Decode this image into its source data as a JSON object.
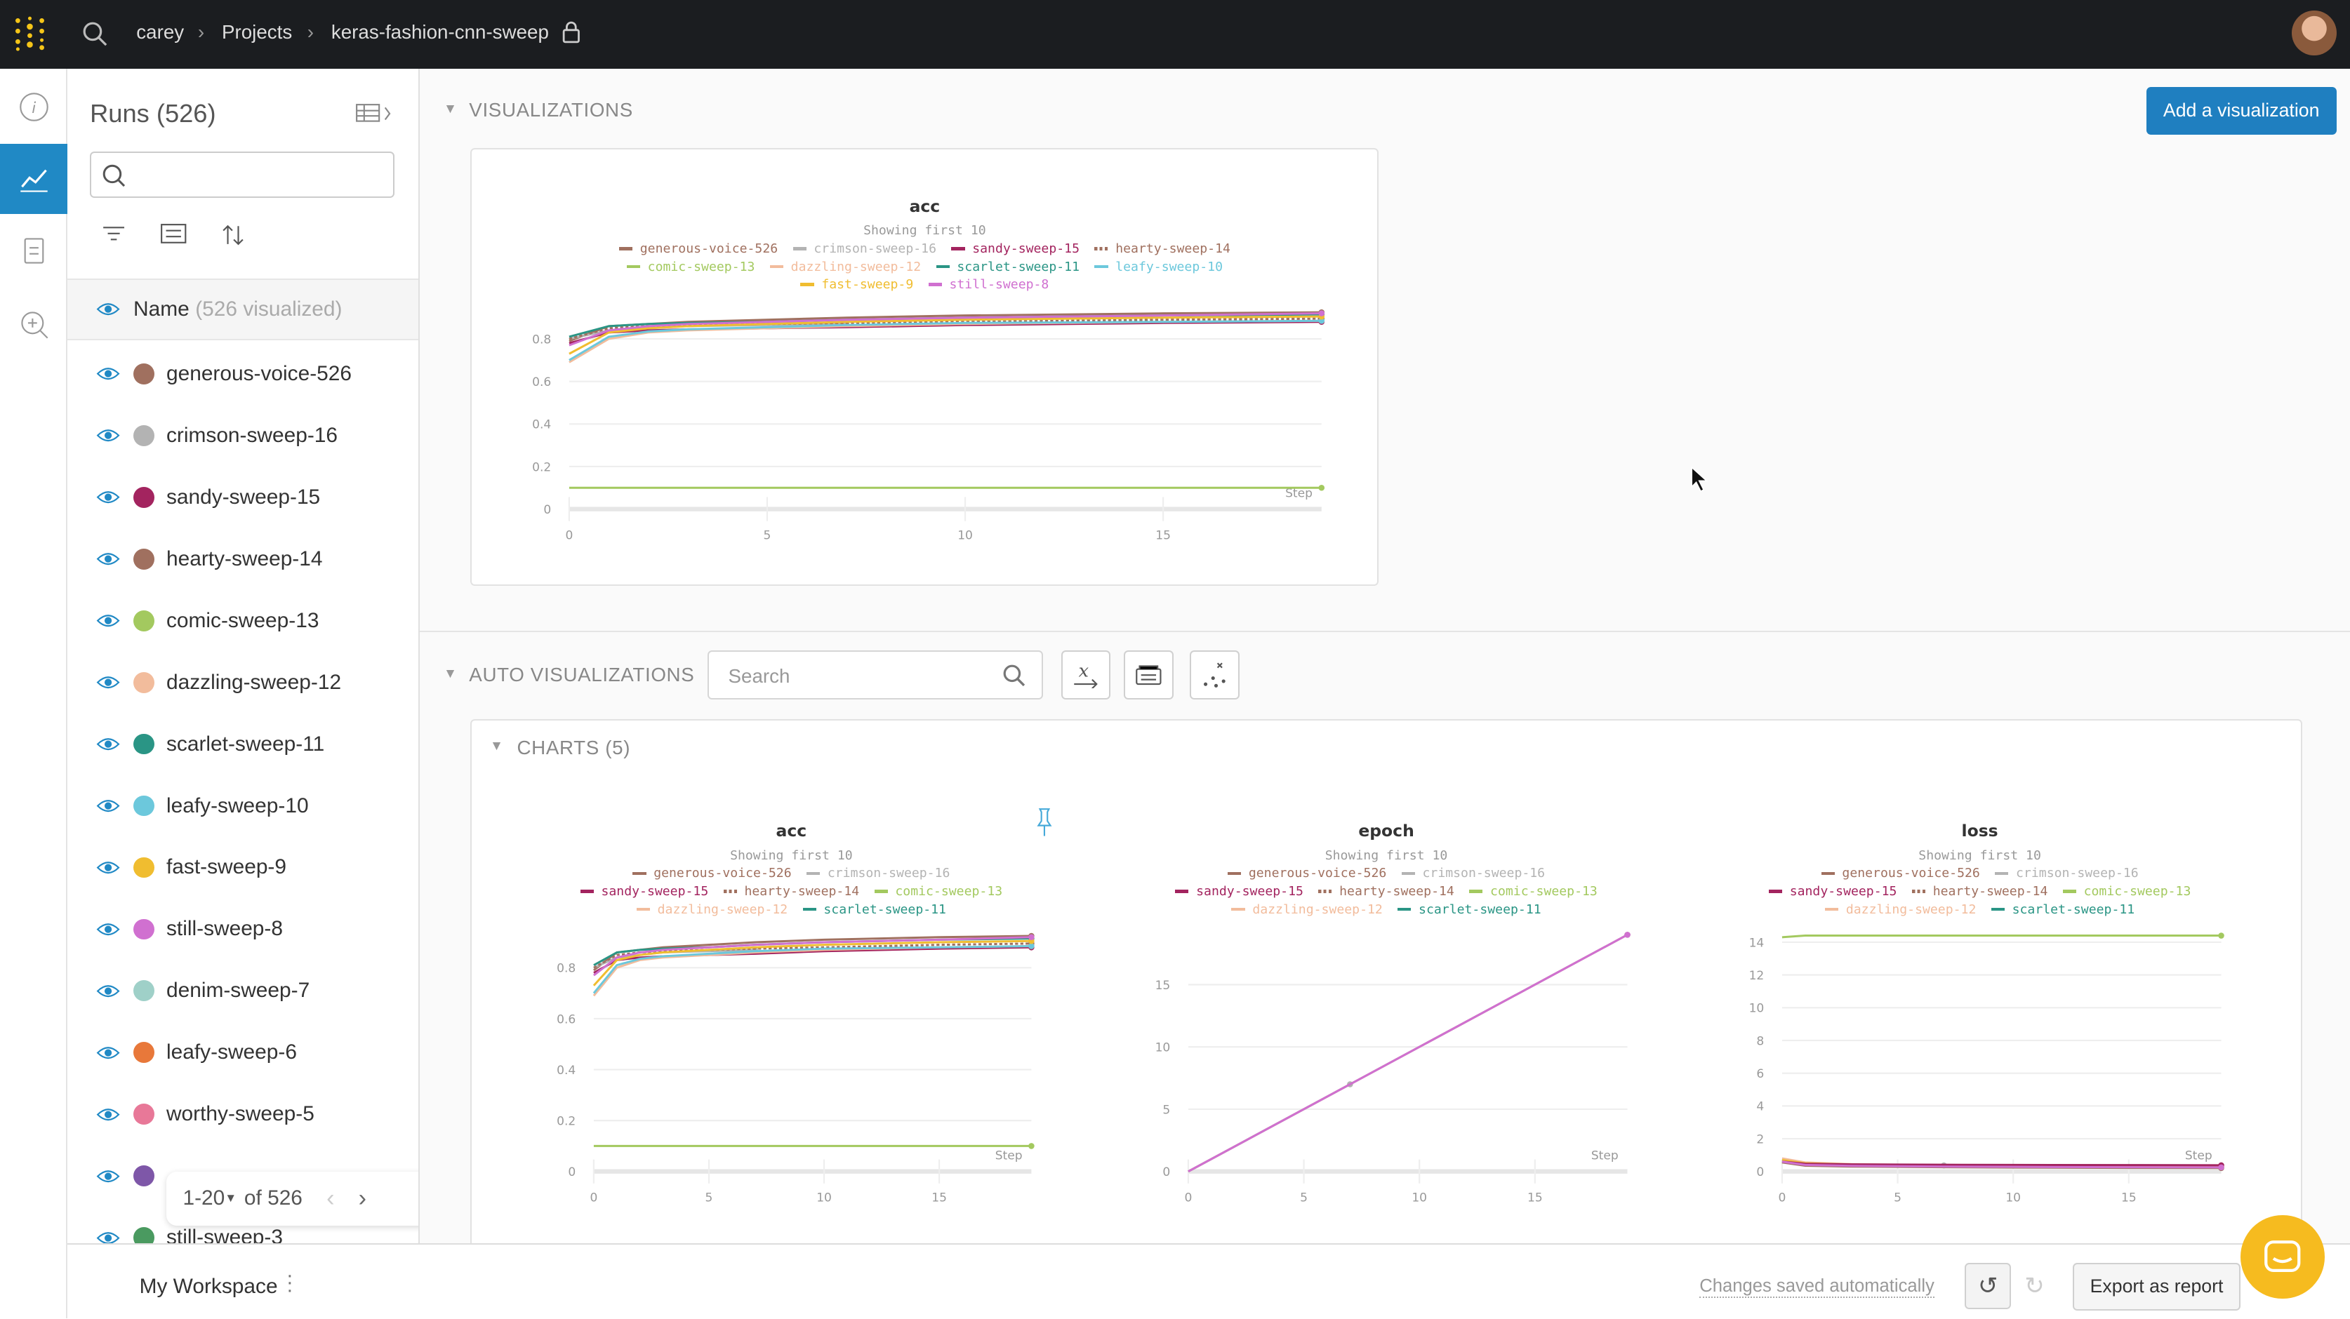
{
  "topbar": {
    "breadcrumb": [
      "carey",
      "Projects",
      "keras-fashion-cnn-sweep"
    ],
    "icons": [
      "wandb-logo-icon",
      "search-icon",
      "lock-icon",
      "avatar"
    ]
  },
  "sidebar": {
    "title": "Runs (526)",
    "search_placeholder": "",
    "name_header": "Name",
    "name_header_count": "(526 visualized)",
    "runs": [
      {
        "name": "generous-voice-526",
        "color": "#a0705f"
      },
      {
        "name": "crimson-sweep-16",
        "color": "#b3b3b3"
      },
      {
        "name": "sandy-sweep-15",
        "color": "#a3245f"
      },
      {
        "name": "hearty-sweep-14",
        "color": "#a0705f"
      },
      {
        "name": "comic-sweep-13",
        "color": "#a3c95f"
      },
      {
        "name": "dazzling-sweep-12",
        "color": "#f2bc9c"
      },
      {
        "name": "scarlet-sweep-11",
        "color": "#2a9585"
      },
      {
        "name": "leafy-sweep-10",
        "color": "#6cc8dc"
      },
      {
        "name": "fast-sweep-9",
        "color": "#f0bd30"
      },
      {
        "name": "still-sweep-8",
        "color": "#d070d0"
      },
      {
        "name": "denim-sweep-7",
        "color": "#9fd0c8"
      },
      {
        "name": "leafy-sweep-6",
        "color": "#e8783a"
      },
      {
        "name": "worthy-sweep-5",
        "color": "#e87898"
      },
      {
        "name": "",
        "color": "#7e57a8"
      },
      {
        "name": "still-sweep-3",
        "color": "#4a9a60"
      }
    ],
    "pagination": {
      "range": "1-20",
      "of": "of 526"
    }
  },
  "main": {
    "visualizations_label": "VISUALIZATIONS",
    "add_button": "Add a visualization",
    "auto_label": "AUTO VISUALIZATIONS",
    "search_placeholder": "Search",
    "charts_label": "CHARTS (5)",
    "accent": "#1f7fc0"
  },
  "bottom": {
    "workspace": "My Workspace",
    "saved": "Changes saved automatically",
    "export": "Export as report"
  },
  "chart_data": [
    {
      "type": "line",
      "title": "acc",
      "subtitle": "Showing first 10",
      "xlabel": "Step",
      "xlim": [
        0,
        19
      ],
      "ylim": [
        0,
        1
      ],
      "yticks": [
        0,
        0.2,
        0.4,
        0.6,
        0.8
      ],
      "xticks": [
        0,
        5,
        10,
        15
      ],
      "legend": [
        "generous-voice-526",
        "crimson-sweep-16",
        "sandy-sweep-15",
        "hearty-sweep-14",
        "comic-sweep-13",
        "dazzling-sweep-12",
        "scarlet-sweep-11",
        "leafy-sweep-10",
        "fast-sweep-9",
        "still-sweep-8"
      ],
      "x": [
        0,
        1,
        2,
        3,
        5,
        7,
        10,
        15,
        19
      ],
      "series": [
        {
          "name": "generous-voice-526",
          "values": [
            0.79,
            0.86,
            0.87,
            0.88,
            0.89,
            0.9,
            0.91,
            0.92,
            0.925
          ]
        },
        {
          "name": "crimson-sweep-16",
          "values": [
            0.8,
            0.84,
            0.85,
            0.86,
            0.865,
            0.87,
            null,
            null,
            null
          ]
        },
        {
          "name": "sandy-sweep-15",
          "values": [
            0.78,
            0.83,
            0.84,
            0.845,
            0.85,
            0.855,
            0.865,
            0.875,
            0.88
          ]
        },
        {
          "name": "hearty-sweep-14",
          "values": [
            0.8,
            0.85,
            0.86,
            0.865,
            0.87,
            0.875,
            0.88,
            0.89,
            0.895
          ]
        },
        {
          "name": "comic-sweep-13",
          "values": [
            0.1,
            0.1,
            0.1,
            0.1,
            0.1,
            0.1,
            0.1,
            0.1,
            0.1
          ]
        },
        {
          "name": "dazzling-sweep-12",
          "values": [
            0.69,
            0.8,
            0.83,
            0.84,
            0.85,
            0.86,
            0.87,
            0.88,
            0.885
          ]
        },
        {
          "name": "scarlet-sweep-11",
          "values": [
            0.81,
            0.86,
            0.87,
            0.875,
            0.88,
            0.89,
            0.9,
            0.91,
            0.915
          ]
        },
        {
          "name": "leafy-sweep-10",
          "values": [
            0.7,
            0.81,
            0.835,
            0.845,
            0.855,
            0.865,
            0.875,
            0.88,
            0.885
          ]
        },
        {
          "name": "fast-sweep-9",
          "values": [
            0.73,
            0.83,
            0.85,
            0.86,
            0.87,
            0.88,
            0.89,
            0.9,
            0.905
          ]
        },
        {
          "name": "still-sweep-8",
          "values": [
            0.77,
            0.84,
            0.86,
            0.87,
            0.88,
            0.89,
            0.9,
            0.91,
            0.92
          ]
        }
      ]
    },
    {
      "type": "line",
      "title": "acc",
      "subtitle": "Showing first 10",
      "xlabel": "Step",
      "xlim": [
        0,
        19
      ],
      "ylim": [
        0,
        1
      ],
      "yticks": [
        0,
        0.2,
        0.4,
        0.6,
        0.8
      ],
      "xticks": [
        0,
        5,
        10,
        15
      ],
      "legend": [
        "generous-voice-526",
        "crimson-sweep-16",
        "sandy-sweep-15",
        "hearty-sweep-14",
        "comic-sweep-13",
        "dazzling-sweep-12",
        "scarlet-sweep-11"
      ],
      "x": [
        0,
        1,
        2,
        3,
        5,
        7,
        10,
        15,
        19
      ],
      "series": [
        {
          "name": "generous-voice-526",
          "values": [
            0.79,
            0.86,
            0.87,
            0.88,
            0.89,
            0.9,
            0.91,
            0.92,
            0.925
          ]
        },
        {
          "name": "crimson-sweep-16",
          "values": [
            0.8,
            0.84,
            0.85,
            0.86,
            0.865,
            0.87,
            null,
            null,
            null
          ]
        },
        {
          "name": "sandy-sweep-15",
          "values": [
            0.78,
            0.83,
            0.84,
            0.845,
            0.85,
            0.855,
            0.865,
            0.875,
            0.88
          ]
        },
        {
          "name": "hearty-sweep-14",
          "values": [
            0.8,
            0.85,
            0.86,
            0.865,
            0.87,
            0.875,
            0.88,
            0.89,
            0.895
          ]
        },
        {
          "name": "comic-sweep-13",
          "values": [
            0.1,
            0.1,
            0.1,
            0.1,
            0.1,
            0.1,
            0.1,
            0.1,
            0.1
          ]
        },
        {
          "name": "dazzling-sweep-12",
          "values": [
            0.69,
            0.8,
            0.83,
            0.84,
            0.85,
            0.86,
            0.87,
            0.88,
            0.885
          ]
        },
        {
          "name": "scarlet-sweep-11",
          "values": [
            0.81,
            0.86,
            0.87,
            0.875,
            0.88,
            0.89,
            0.9,
            0.91,
            0.915
          ]
        },
        {
          "name": "leafy-sweep-10",
          "values": [
            0.7,
            0.81,
            0.835,
            0.845,
            0.855,
            0.865,
            0.875,
            0.88,
            0.885
          ]
        },
        {
          "name": "fast-sweep-9",
          "values": [
            0.73,
            0.83,
            0.85,
            0.86,
            0.87,
            0.88,
            0.89,
            0.9,
            0.905
          ]
        },
        {
          "name": "still-sweep-8",
          "values": [
            0.77,
            0.84,
            0.86,
            0.87,
            0.88,
            0.89,
            0.9,
            0.91,
            0.92
          ]
        }
      ]
    },
    {
      "type": "line",
      "title": "epoch",
      "subtitle": "Showing first 10",
      "xlabel": "Step",
      "xlim": [
        0,
        19
      ],
      "ylim": [
        0,
        19
      ],
      "yticks": [
        0,
        5,
        10,
        15
      ],
      "xticks": [
        0,
        5,
        10,
        15
      ],
      "legend": [
        "generous-voice-526",
        "crimson-sweep-16",
        "sandy-sweep-15",
        "hearty-sweep-14",
        "comic-sweep-13",
        "dazzling-sweep-12",
        "scarlet-sweep-11"
      ],
      "x": [
        0,
        7,
        19
      ],
      "series": [
        {
          "name": "crimson-sweep-16",
          "values": [
            0,
            7,
            null
          ]
        },
        {
          "name": "generous-voice-526",
          "values": [
            0,
            7,
            19
          ]
        },
        {
          "name": "still-sweep-8",
          "values": [
            0,
            7,
            19
          ]
        }
      ]
    },
    {
      "type": "line",
      "title": "loss",
      "subtitle": "Showing first 10",
      "xlabel": "Step",
      "xlim": [
        0,
        19
      ],
      "ylim": [
        0,
        15
      ],
      "yticks": [
        0,
        2,
        4,
        6,
        8,
        10,
        12,
        14
      ],
      "xticks": [
        0,
        5,
        10,
        15
      ],
      "legend": [
        "generous-voice-526",
        "crimson-sweep-16",
        "sandy-sweep-15",
        "hearty-sweep-14",
        "comic-sweep-13",
        "dazzling-sweep-12",
        "scarlet-sweep-11"
      ],
      "x": [
        0,
        1,
        3,
        7,
        10,
        15,
        19
      ],
      "series": [
        {
          "name": "comic-sweep-13",
          "values": [
            14.3,
            14.4,
            14.4,
            14.4,
            14.4,
            14.4,
            14.4
          ]
        },
        {
          "name": "dazzling-sweep-12",
          "values": [
            0.8,
            0.55,
            0.45,
            0.38,
            0.35,
            0.33,
            0.31
          ]
        },
        {
          "name": "fast-sweep-9",
          "values": [
            0.7,
            0.5,
            0.42,
            0.36,
            0.33,
            0.31,
            0.3
          ]
        },
        {
          "name": "crimson-sweep-16",
          "values": [
            0.6,
            0.45,
            0.4,
            0.37,
            null,
            null,
            null
          ]
        },
        {
          "name": "sandy-sweep-15",
          "values": [
            0.6,
            0.47,
            0.43,
            0.41,
            0.4,
            0.39,
            0.38
          ]
        },
        {
          "name": "generous-voice-526",
          "values": [
            0.55,
            0.35,
            0.3,
            0.26,
            0.24,
            0.22,
            0.21
          ]
        },
        {
          "name": "still-sweep-8",
          "values": [
            0.6,
            0.4,
            0.34,
            0.3,
            0.28,
            0.26,
            0.25
          ]
        }
      ]
    }
  ]
}
